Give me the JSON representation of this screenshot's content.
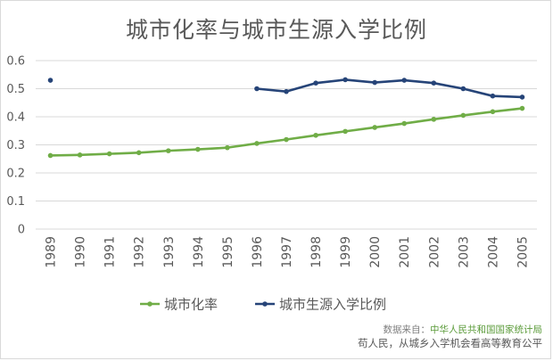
{
  "title": "城市化率与城市生源入学比例",
  "chart_data": {
    "type": "line",
    "title": "城市化率与城市生源入学比例",
    "categories": [
      "1989",
      "1990",
      "1991",
      "1992",
      "1993",
      "1994",
      "1995",
      "1996",
      "1997",
      "1998",
      "1999",
      "2000",
      "2001",
      "2002",
      "2003",
      "2004",
      "2005"
    ],
    "ylim": [
      0,
      0.6
    ],
    "yticks": [
      "0",
      "0.1",
      "0.2",
      "0.3",
      "0.4",
      "0.5",
      "0.6"
    ],
    "grid": true,
    "legend": "bottom",
    "series": [
      {
        "name": "城市化率",
        "color": "#70ad47",
        "values": [
          0.262,
          0.264,
          0.268,
          0.272,
          0.279,
          0.284,
          0.29,
          0.305,
          0.319,
          0.334,
          0.348,
          0.362,
          0.376,
          0.391,
          0.405,
          0.418,
          0.43
        ]
      },
      {
        "name": "城市生源入学比例",
        "color": "#264478",
        "values": [
          0.53,
          null,
          null,
          null,
          null,
          null,
          null,
          0.5,
          0.49,
          0.52,
          0.532,
          0.522,
          0.53,
          0.52,
          0.5,
          0.474,
          0.47
        ]
      }
    ]
  },
  "source": {
    "label": "数据来自：",
    "name": "中华人民共和国国家统计局",
    "author": "苟人民，从城乡入学机会看高等教育公平"
  }
}
